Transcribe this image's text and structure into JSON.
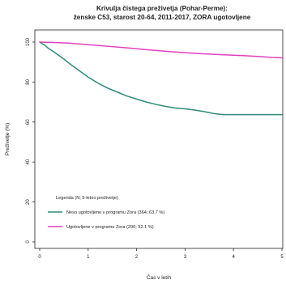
{
  "chart_data": {
    "type": "line",
    "title": "Krivulja čistega preživetja (Pohar-Perme):",
    "subtitle": "ženske C53, starost 20-64, 2011-2017, ZORA ugotovljene",
    "xlabel": "Čas v letih",
    "ylabel": "Preživetje (%)",
    "xlim": [
      0,
      5
    ],
    "ylim": [
      0,
      100
    ],
    "xticks": [
      "0",
      "1",
      "2",
      "3",
      "4",
      "5"
    ],
    "yticks": [
      "0",
      "20",
      "40",
      "60",
      "80",
      "100"
    ],
    "grid": false,
    "legend_placement": "bottom-left",
    "legend_title": "Legenda (N; 5-letno preživetje)",
    "series": [
      {
        "name": "Neso ugotovljene v programu Zora (364; 63.7 %)",
        "color": "#2e8b7a",
        "x": [
          0,
          0.1,
          0.2,
          0.3,
          0.4,
          0.5,
          0.6,
          0.8,
          1.0,
          1.2,
          1.4,
          1.6,
          1.8,
          2.0,
          2.2,
          2.4,
          2.6,
          2.8,
          3.0,
          3.2,
          3.4,
          3.6,
          3.7,
          3.8,
          4.0,
          4.5,
          5.0
        ],
        "values": [
          100,
          98.5,
          96.5,
          95,
          93.2,
          91.5,
          89.5,
          86,
          82.5,
          79.5,
          77,
          75,
          73,
          71.5,
          70,
          68.8,
          67.8,
          67,
          66.6,
          66,
          65.2,
          64.2,
          63.9,
          63.7,
          63.7,
          63.7,
          63.7
        ]
      },
      {
        "name": "Ugotovljene v programu Zora (290; 92.1 %)",
        "color": "#e23fc4",
        "x": [
          0,
          0.3,
          0.6,
          1.0,
          1.4,
          1.8,
          2.2,
          2.6,
          3.0,
          3.4,
          3.8,
          4.2,
          4.5,
          4.8,
          5.0
        ],
        "values": [
          100,
          99.8,
          99.5,
          98.7,
          97.9,
          97.1,
          96.2,
          95.4,
          94.7,
          94.1,
          93.6,
          93.2,
          92.8,
          92.3,
          92.1
        ]
      }
    ]
  }
}
